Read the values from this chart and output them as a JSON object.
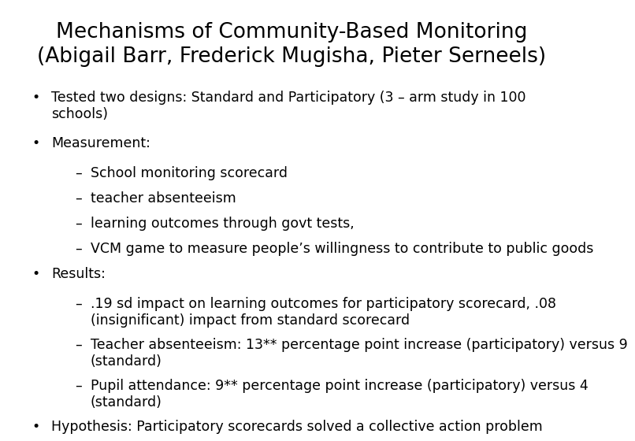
{
  "title_line1": "Mechanisms of Community-Based Monitoring",
  "title_line2": "(Abigail Barr, Frederick Mugisha, Pieter Serneels)",
  "background_color": "#ffffff",
  "text_color": "#000000",
  "title_fontsize": 19,
  "body_fontsize": 12.5,
  "font_family": "DejaVu Sans",
  "bullets": [
    {
      "level": 0,
      "text": "Tested two designs: Standard and Participatory (3 – arm study in 100\nschools)"
    },
    {
      "level": 0,
      "text": "Measurement:"
    },
    {
      "level": 1,
      "text": "School monitoring scorecard"
    },
    {
      "level": 1,
      "text": "teacher absenteeism"
    },
    {
      "level": 1,
      "text": "learning outcomes through govt tests,"
    },
    {
      "level": 1,
      "text": "VCM game to measure people’s willingness to contribute to public goods"
    },
    {
      "level": 0,
      "text": "Results:"
    },
    {
      "level": 1,
      "text": ".19 sd impact on learning outcomes for participatory scorecard, .08\n(insignificant) impact from standard scorecard"
    },
    {
      "level": 1,
      "text": "Teacher absenteeism: 13** percentage point increase (participatory) versus 9\n(standard)"
    },
    {
      "level": 1,
      "text": "Pupil attendance: 9** percentage point increase (participatory) versus 4\n(standard)"
    },
    {
      "level": 0,
      "text": "Hypothesis: Participatory scorecards solved a collective action problem"
    }
  ]
}
